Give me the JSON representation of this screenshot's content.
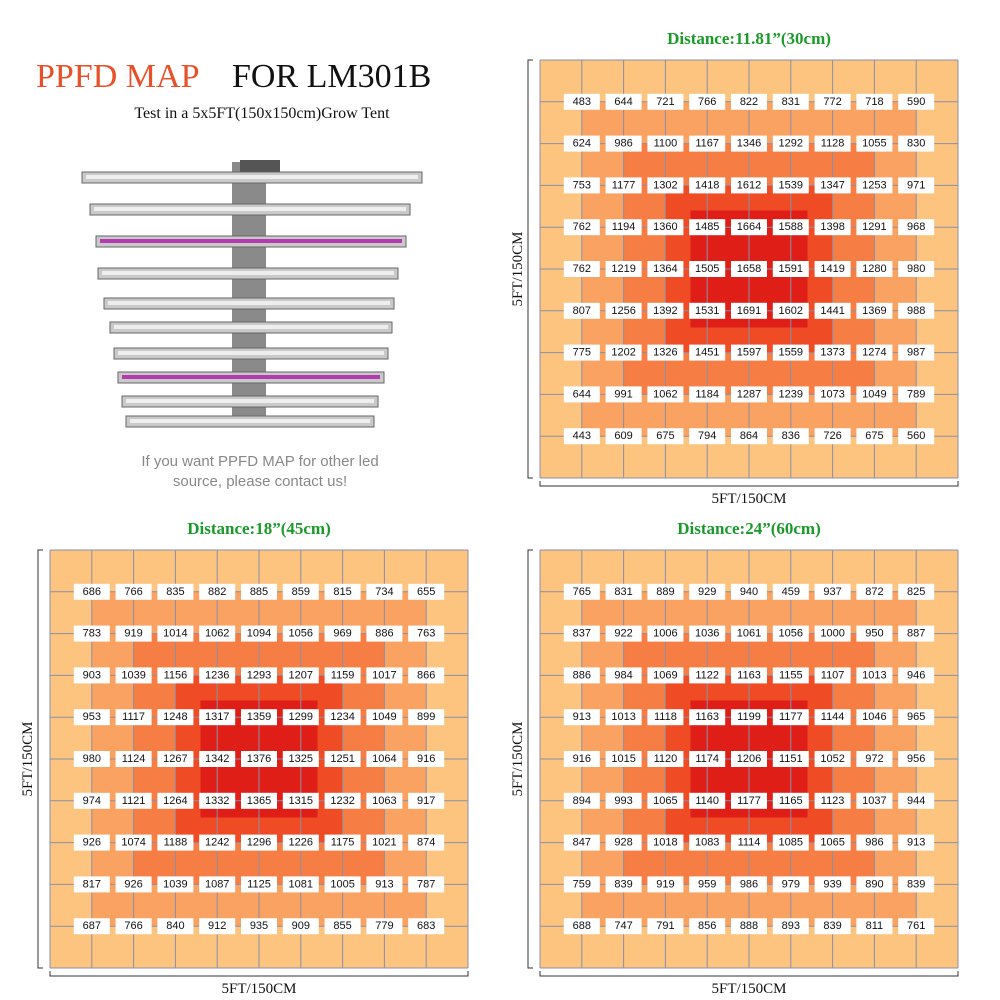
{
  "header": {
    "title_part1": "PPFD MAP",
    "title_part2": "FOR LM301B",
    "subtitle": "Test in a 5x5FT(150x150cm)Grow Tent",
    "note_line1": "If you want PPFD MAP for other led",
    "note_line2": "source, please contact us!"
  },
  "maps": [
    {
      "title": "Distance:11.81”(30cm)",
      "xlabel": "5FT/150CM",
      "ylabel": "5FT/150CM",
      "rows": [
        [
          483,
          644,
          721,
          766,
          822,
          831,
          772,
          718,
          590
        ],
        [
          624,
          986,
          1100,
          1167,
          1346,
          1292,
          1128,
          1055,
          830
        ],
        [
          753,
          1177,
          1302,
          1418,
          1612,
          1539,
          1347,
          1253,
          971
        ],
        [
          762,
          1194,
          1360,
          1485,
          1664,
          1588,
          1398,
          1291,
          968
        ],
        [
          762,
          1219,
          1364,
          1505,
          1658,
          1591,
          1419,
          1280,
          980
        ],
        [
          807,
          1256,
          1392,
          1531,
          1691,
          1602,
          1441,
          1369,
          988
        ],
        [
          775,
          1202,
          1326,
          1451,
          1597,
          1559,
          1373,
          1274,
          987
        ],
        [
          644,
          991,
          1062,
          1184,
          1287,
          1239,
          1073,
          1049,
          789
        ],
        [
          443,
          609,
          675,
          794,
          864,
          836,
          726,
          675,
          560
        ]
      ]
    },
    {
      "title": "Distance:18”(45cm)",
      "xlabel": "5FT/150CM",
      "ylabel": "5FT/150CM",
      "rows": [
        [
          686,
          766,
          835,
          882,
          885,
          859,
          815,
          734,
          655
        ],
        [
          783,
          919,
          1014,
          1062,
          1094,
          1056,
          969,
          886,
          763
        ],
        [
          903,
          1039,
          1156,
          1236,
          1293,
          1207,
          1159,
          1017,
          866
        ],
        [
          953,
          1117,
          1248,
          1317,
          1359,
          1299,
          1234,
          1049,
          899
        ],
        [
          980,
          1124,
          1267,
          1342,
          1376,
          1325,
          1251,
          1064,
          916
        ],
        [
          974,
          1121,
          1264,
          1332,
          1365,
          1315,
          1232,
          1063,
          917
        ],
        [
          926,
          1074,
          1188,
          1242,
          1296,
          1226,
          1175,
          1021,
          874
        ],
        [
          817,
          926,
          1039,
          1087,
          1125,
          1081,
          1005,
          913,
          787
        ],
        [
          687,
          766,
          840,
          912,
          935,
          909,
          855,
          779,
          683
        ]
      ]
    },
    {
      "title": "Distance:24”(60cm)",
      "xlabel": "5FT/150CM",
      "ylabel": "5FT/150CM",
      "rows": [
        [
          765,
          831,
          889,
          929,
          940,
          459,
          937,
          872,
          825
        ],
        [
          837,
          922,
          1006,
          1036,
          1061,
          1056,
          1000,
          950,
          887
        ],
        [
          886,
          984,
          1069,
          1122,
          1163,
          1155,
          1107,
          1013,
          946
        ],
        [
          913,
          1013,
          1118,
          1163,
          1199,
          1177,
          1144,
          1046,
          965
        ],
        [
          916,
          1015,
          1120,
          1174,
          1206,
          1151,
          1052,
          972,
          956
        ],
        [
          894,
          993,
          1065,
          1140,
          1177,
          1165,
          1123,
          1037,
          944
        ],
        [
          847,
          928,
          1018,
          1083,
          1114,
          1085,
          1065,
          986,
          913
        ],
        [
          759,
          839,
          919,
          959,
          986,
          979,
          939,
          890,
          839
        ],
        [
          688,
          747,
          791,
          856,
          888,
          893,
          839,
          811,
          761
        ]
      ]
    }
  ]
}
